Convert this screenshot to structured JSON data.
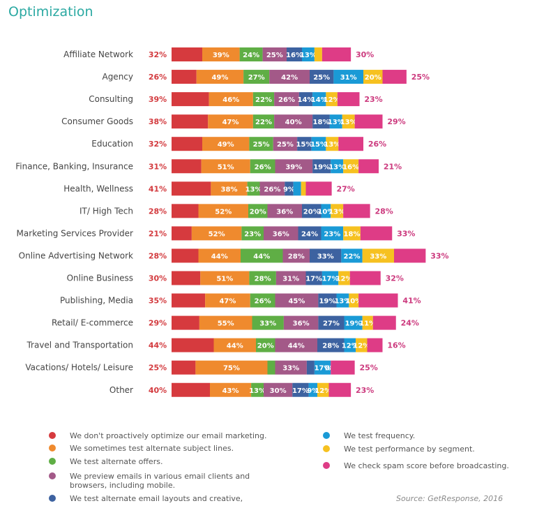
{
  "title": "Optimization",
  "source": "Source: GetResponse, 2016",
  "chart_data": {
    "type": "bar",
    "stacked": true,
    "orientation": "horizontal",
    "categories": [
      "Affiliate Network",
      "Agency",
      "Consulting",
      "Consumer Goods",
      "Education",
      "Finance, Banking, Insurance",
      "Health, Wellness",
      "IT/ High Tech",
      "Marketing Services Provider",
      "Online Advertising Network",
      "Online Business",
      "Publishing, Media",
      "Retail/ E-commerce",
      "Travel and Transportation",
      "Vacations/ Hotels/ Leisure",
      "Other"
    ],
    "series": [
      {
        "name": "We don't proactively optimize our email marketing.",
        "color": "#d63a3e",
        "values": [
          32,
          26,
          39,
          38,
          32,
          31,
          41,
          28,
          21,
          28,
          30,
          35,
          29,
          44,
          25,
          40
        ]
      },
      {
        "name": "We sometimes test alternate subject lines.",
        "color": "#ef8a2e",
        "values": [
          39,
          49,
          46,
          47,
          49,
          51,
          38,
          52,
          52,
          44,
          51,
          47,
          55,
          44,
          75,
          43
        ]
      },
      {
        "name": "We test alternate offers.",
        "color": "#5fae45",
        "values": [
          24,
          27,
          22,
          22,
          25,
          26,
          13,
          20,
          23,
          44,
          28,
          26,
          33,
          20,
          8,
          13
        ]
      },
      {
        "name": "We preview emails in various email clients and browsers, including mobile.",
        "color": "#a35988",
        "values": [
          25,
          42,
          26,
          40,
          25,
          39,
          26,
          36,
          36,
          28,
          31,
          45,
          36,
          44,
          33,
          30
        ]
      },
      {
        "name": "We test alternate email layouts and creative,",
        "color": "#3d62a0",
        "values": [
          16,
          25,
          14,
          18,
          15,
          19,
          9,
          20,
          24,
          33,
          17,
          19,
          27,
          28,
          8,
          17
        ]
      },
      {
        "name": "We test frequency.",
        "color": "#1a9ad6",
        "values": [
          13,
          31,
          14,
          13,
          15,
          13,
          8,
          10,
          23,
          22,
          17,
          13,
          19,
          12,
          17,
          9
        ]
      },
      {
        "name": "We test performance by segment.",
        "color": "#f6c120",
        "values": [
          8,
          20,
          12,
          13,
          13,
          16,
          5,
          13,
          18,
          33,
          12,
          10,
          11,
          12,
          0,
          12
        ]
      },
      {
        "name": "We check spam score before broadcasting.",
        "color": "#de3c86",
        "values": [
          30,
          25,
          23,
          29,
          26,
          21,
          27,
          28,
          33,
          33,
          32,
          41,
          24,
          16,
          25,
          23
        ]
      }
    ],
    "label_format": "{v}%",
    "legend_position": "bottom"
  }
}
